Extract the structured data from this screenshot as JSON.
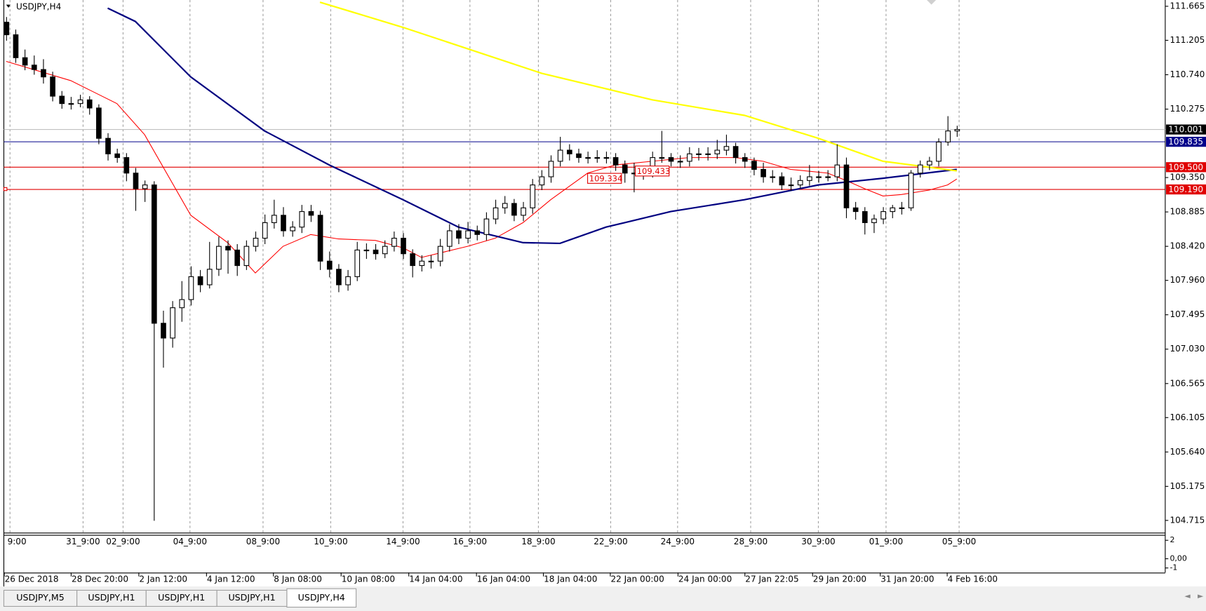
{
  "chart_data": {
    "type": "candlestick",
    "title": "USDJPY,H4",
    "candles": [
      [
        111.45,
        111.52,
        111.2,
        111.28
      ],
      [
        111.28,
        111.35,
        110.9,
        110.97
      ],
      [
        110.97,
        111.08,
        110.8,
        110.87
      ],
      [
        110.87,
        111.0,
        110.74,
        110.81
      ],
      [
        110.81,
        110.95,
        110.62,
        110.71
      ],
      [
        110.71,
        110.78,
        110.38,
        110.45
      ],
      [
        110.45,
        110.52,
        110.28,
        110.35
      ],
      [
        110.35,
        110.44,
        110.27,
        110.35
      ],
      [
        110.35,
        110.47,
        110.3,
        110.4
      ],
      [
        110.4,
        110.45,
        110.2,
        110.29
      ],
      [
        110.29,
        110.34,
        109.8,
        109.88
      ],
      [
        109.88,
        109.95,
        109.58,
        109.67
      ],
      [
        109.67,
        109.74,
        109.55,
        109.62
      ],
      [
        109.62,
        109.68,
        109.3,
        109.41
      ],
      [
        109.41,
        109.48,
        108.9,
        109.2
      ],
      [
        109.2,
        109.31,
        109.02,
        109.25
      ],
      [
        109.25,
        109.3,
        104.71,
        107.38
      ],
      [
        107.38,
        107.55,
        106.78,
        107.18
      ],
      [
        107.18,
        107.68,
        107.05,
        107.59
      ],
      [
        107.59,
        107.95,
        107.4,
        107.7
      ],
      [
        107.7,
        108.15,
        107.62,
        108.01
      ],
      [
        108.01,
        108.1,
        107.8,
        107.9
      ],
      [
        107.9,
        108.48,
        107.85,
        108.11
      ],
      [
        108.11,
        108.55,
        108.02,
        108.42
      ],
      [
        108.42,
        108.5,
        108.05,
        108.37
      ],
      [
        108.37,
        108.45,
        108.02,
        108.16
      ],
      [
        108.16,
        108.5,
        108.1,
        108.42
      ],
      [
        108.42,
        108.62,
        108.35,
        108.53
      ],
      [
        108.53,
        108.85,
        108.45,
        108.74
      ],
      [
        108.74,
        109.05,
        108.66,
        108.84
      ],
      [
        108.84,
        108.95,
        108.55,
        108.63
      ],
      [
        108.63,
        108.76,
        108.55,
        108.68
      ],
      [
        108.68,
        108.98,
        108.6,
        108.89
      ],
      [
        108.89,
        108.98,
        108.75,
        108.84
      ],
      [
        108.84,
        108.9,
        108.1,
        108.22
      ],
      [
        108.22,
        108.35,
        108.0,
        108.11
      ],
      [
        108.11,
        108.18,
        107.8,
        107.9
      ],
      [
        107.9,
        108.1,
        107.82,
        108.01
      ],
      [
        108.01,
        108.48,
        107.95,
        108.37
      ],
      [
        108.37,
        108.46,
        108.25,
        108.37
      ],
      [
        108.37,
        108.45,
        108.24,
        108.32
      ],
      [
        108.32,
        108.5,
        108.26,
        108.42
      ],
      [
        108.42,
        108.62,
        108.35,
        108.53
      ],
      [
        108.53,
        108.6,
        108.25,
        108.32
      ],
      [
        108.32,
        108.38,
        108.0,
        108.16
      ],
      [
        108.16,
        108.3,
        108.08,
        108.22
      ],
      [
        108.22,
        108.3,
        108.12,
        108.22
      ],
      [
        108.22,
        108.52,
        108.15,
        108.42
      ],
      [
        108.42,
        108.72,
        108.35,
        108.63
      ],
      [
        108.63,
        108.72,
        108.45,
        108.53
      ],
      [
        108.53,
        108.75,
        108.46,
        108.63
      ],
      [
        108.63,
        108.7,
        108.5,
        108.58
      ],
      [
        108.58,
        108.88,
        108.5,
        108.79
      ],
      [
        108.79,
        109.05,
        108.72,
        108.94
      ],
      [
        108.94,
        109.1,
        108.86,
        109.0
      ],
      [
        109.0,
        109.06,
        108.76,
        108.84
      ],
      [
        108.84,
        109.02,
        108.76,
        108.94
      ],
      [
        108.94,
        109.33,
        108.86,
        109.25
      ],
      [
        109.25,
        109.45,
        109.18,
        109.36
      ],
      [
        109.36,
        109.65,
        109.28,
        109.57
      ],
      [
        109.57,
        109.9,
        109.5,
        109.72
      ],
      [
        109.72,
        109.8,
        109.58,
        109.67
      ],
      [
        109.67,
        109.74,
        109.55,
        109.62
      ],
      [
        109.62,
        109.7,
        109.54,
        109.62
      ],
      [
        109.62,
        109.72,
        109.55,
        109.62
      ],
      [
        109.62,
        109.7,
        109.54,
        109.62
      ],
      [
        109.62,
        109.68,
        109.44,
        109.52
      ],
      [
        109.52,
        109.58,
        109.28,
        109.41
      ],
      [
        109.41,
        109.55,
        109.15,
        109.41
      ],
      [
        109.41,
        109.5,
        109.32,
        109.41
      ],
      [
        109.41,
        109.7,
        109.35,
        109.62
      ],
      [
        109.62,
        109.98,
        109.55,
        109.62
      ],
      [
        109.62,
        109.68,
        109.5,
        109.57
      ],
      [
        109.57,
        109.65,
        109.48,
        109.57
      ],
      [
        109.57,
        109.76,
        109.5,
        109.67
      ],
      [
        109.67,
        109.75,
        109.58,
        109.67
      ],
      [
        109.67,
        109.76,
        109.58,
        109.67
      ],
      [
        109.67,
        109.86,
        109.6,
        109.72
      ],
      [
        109.72,
        109.93,
        109.65,
        109.77
      ],
      [
        109.77,
        109.82,
        109.54,
        109.62
      ],
      [
        109.62,
        109.68,
        109.48,
        109.57
      ],
      [
        109.57,
        109.62,
        109.38,
        109.46
      ],
      [
        109.46,
        109.55,
        109.28,
        109.36
      ],
      [
        109.36,
        109.45,
        109.28,
        109.36
      ],
      [
        109.36,
        109.42,
        109.18,
        109.25
      ],
      [
        109.25,
        109.35,
        109.17,
        109.25
      ],
      [
        109.25,
        109.38,
        109.2,
        109.31
      ],
      [
        109.31,
        109.52,
        109.24,
        109.36
      ],
      [
        109.36,
        109.44,
        109.28,
        109.36
      ],
      [
        109.36,
        109.45,
        109.3,
        109.36
      ],
      [
        109.36,
        109.8,
        109.3,
        109.52
      ],
      [
        109.52,
        109.62,
        108.8,
        108.94
      ],
      [
        108.94,
        109.02,
        108.78,
        108.89
      ],
      [
        108.89,
        108.95,
        108.58,
        108.74
      ],
      [
        108.74,
        108.85,
        108.6,
        108.79
      ],
      [
        108.79,
        108.95,
        108.72,
        108.89
      ],
      [
        108.89,
        108.98,
        108.8,
        108.94
      ],
      [
        108.94,
        109.02,
        108.85,
        108.94
      ],
      [
        108.94,
        109.45,
        108.9,
        109.41
      ],
      [
        109.41,
        109.58,
        109.35,
        109.52
      ],
      [
        109.52,
        109.63,
        109.45,
        109.57
      ],
      [
        109.57,
        109.88,
        109.5,
        109.83
      ],
      [
        109.83,
        110.18,
        109.78,
        109.98
      ],
      [
        109.98,
        110.05,
        109.9,
        110.0
      ]
    ],
    "ylim": [
      104.55,
      111.75
    ],
    "yticks": [
      111.665,
      111.205,
      {
        "value": 110.74,
        "label": "110.740"
      },
      110.275,
      {
        "value": 109.35,
        "label": "109.350"
      },
      108.885,
      {
        "value": 108.42,
        "label": "108.420"
      },
      {
        "value": 107.96,
        "label": "107.960"
      },
      107.495,
      {
        "value": 107.03,
        "label": "107.030"
      },
      106.565,
      106.105,
      {
        "value": 105.64,
        "label": "105.640"
      },
      105.175,
      104.715
    ],
    "price_lines": [
      {
        "value": 110.001,
        "color": "#000000",
        "line_color": "#c0c0c0"
      },
      {
        "value": 109.835,
        "color": "#00008b",
        "line_color": "#00008b"
      },
      {
        "value": 109.5,
        "label": "109.500",
        "color": "#e00000",
        "line_color": "#e00000"
      },
      {
        "value": 109.19,
        "label": "109.190",
        "color": "#e00000",
        "line_color": "#e00000"
      }
    ],
    "moving_averages": [
      {
        "color": "#ff0000",
        "x": [
          0,
          7,
          12,
          15,
          20,
          24,
          27,
          30,
          33,
          36,
          40,
          43,
          45,
          50,
          53,
          56,
          59,
          63,
          66,
          70,
          74,
          79,
          82,
          85,
          89,
          91,
          93,
          95,
          97,
          100,
          102,
          103
        ],
        "values": [
          110.92,
          110.66,
          110.35,
          109.93,
          108.84,
          108.47,
          108.06,
          108.42,
          108.58,
          108.52,
          108.5,
          108.4,
          108.27,
          108.42,
          108.53,
          108.74,
          109.05,
          109.41,
          109.52,
          109.57,
          109.62,
          109.62,
          109.57,
          109.46,
          109.41,
          109.31,
          109.2,
          109.1,
          109.12,
          109.18,
          109.25,
          109.33
        ]
      },
      {
        "color": "#000080",
        "x": [
          11,
          14,
          20,
          28,
          35,
          43,
          49,
          56,
          60,
          65,
          72,
          80,
          88,
          95,
          103
        ],
        "values": [
          111.64,
          111.46,
          110.71,
          109.98,
          109.52,
          109.05,
          108.68,
          108.47,
          108.46,
          108.68,
          108.89,
          109.05,
          109.25,
          109.34,
          109.46
        ]
      },
      {
        "color": "#ffff00",
        "x": [
          34,
          43,
          58,
          70,
          80,
          88,
          95,
          103
        ],
        "values": [
          111.72,
          111.38,
          110.76,
          110.4,
          110.19,
          109.88,
          109.57,
          109.44
        ]
      }
    ],
    "annotations": [
      109.334,
      109.433
    ],
    "x_labels": [
      "9:00",
      "31_9:00",
      "02_9:00",
      "04_9:00",
      "08_9:00",
      "10_9:00",
      "14_9:00",
      "16_9:00",
      "18_9:00",
      "22_9:00",
      "24_9:00",
      "28_9:00",
      "30_9:00",
      "01_9:00",
      "05_9:00"
    ],
    "date_labels": [
      "26 Dec 2018",
      "28 Dec 20:00",
      "2 Jan 12:00",
      "4 Jan 12:00",
      "8 Jan 08:00",
      "10 Jan 08:00",
      "14 Jan 04:00",
      "16 Jan 04:00",
      "18 Jan 04:00",
      "22 Jan 00:00",
      "24 Jan 00:00",
      "27 Jan 22:05",
      "29 Jan 20:00",
      "31 Jan 20:00",
      "4 Feb 16:00"
    ],
    "indicator_ylim": [
      -1.5,
      2.5
    ],
    "indicator_ticks": [
      2,
      {
        "value": 0,
        "label": "0,00"
      },
      -1
    ]
  },
  "tabs": [
    "USDJPY,M5",
    "USDJPY,H1",
    "USDJPY,H1",
    "USDJPY,H1",
    "USDJPY,H4"
  ],
  "active_tab": 4
}
